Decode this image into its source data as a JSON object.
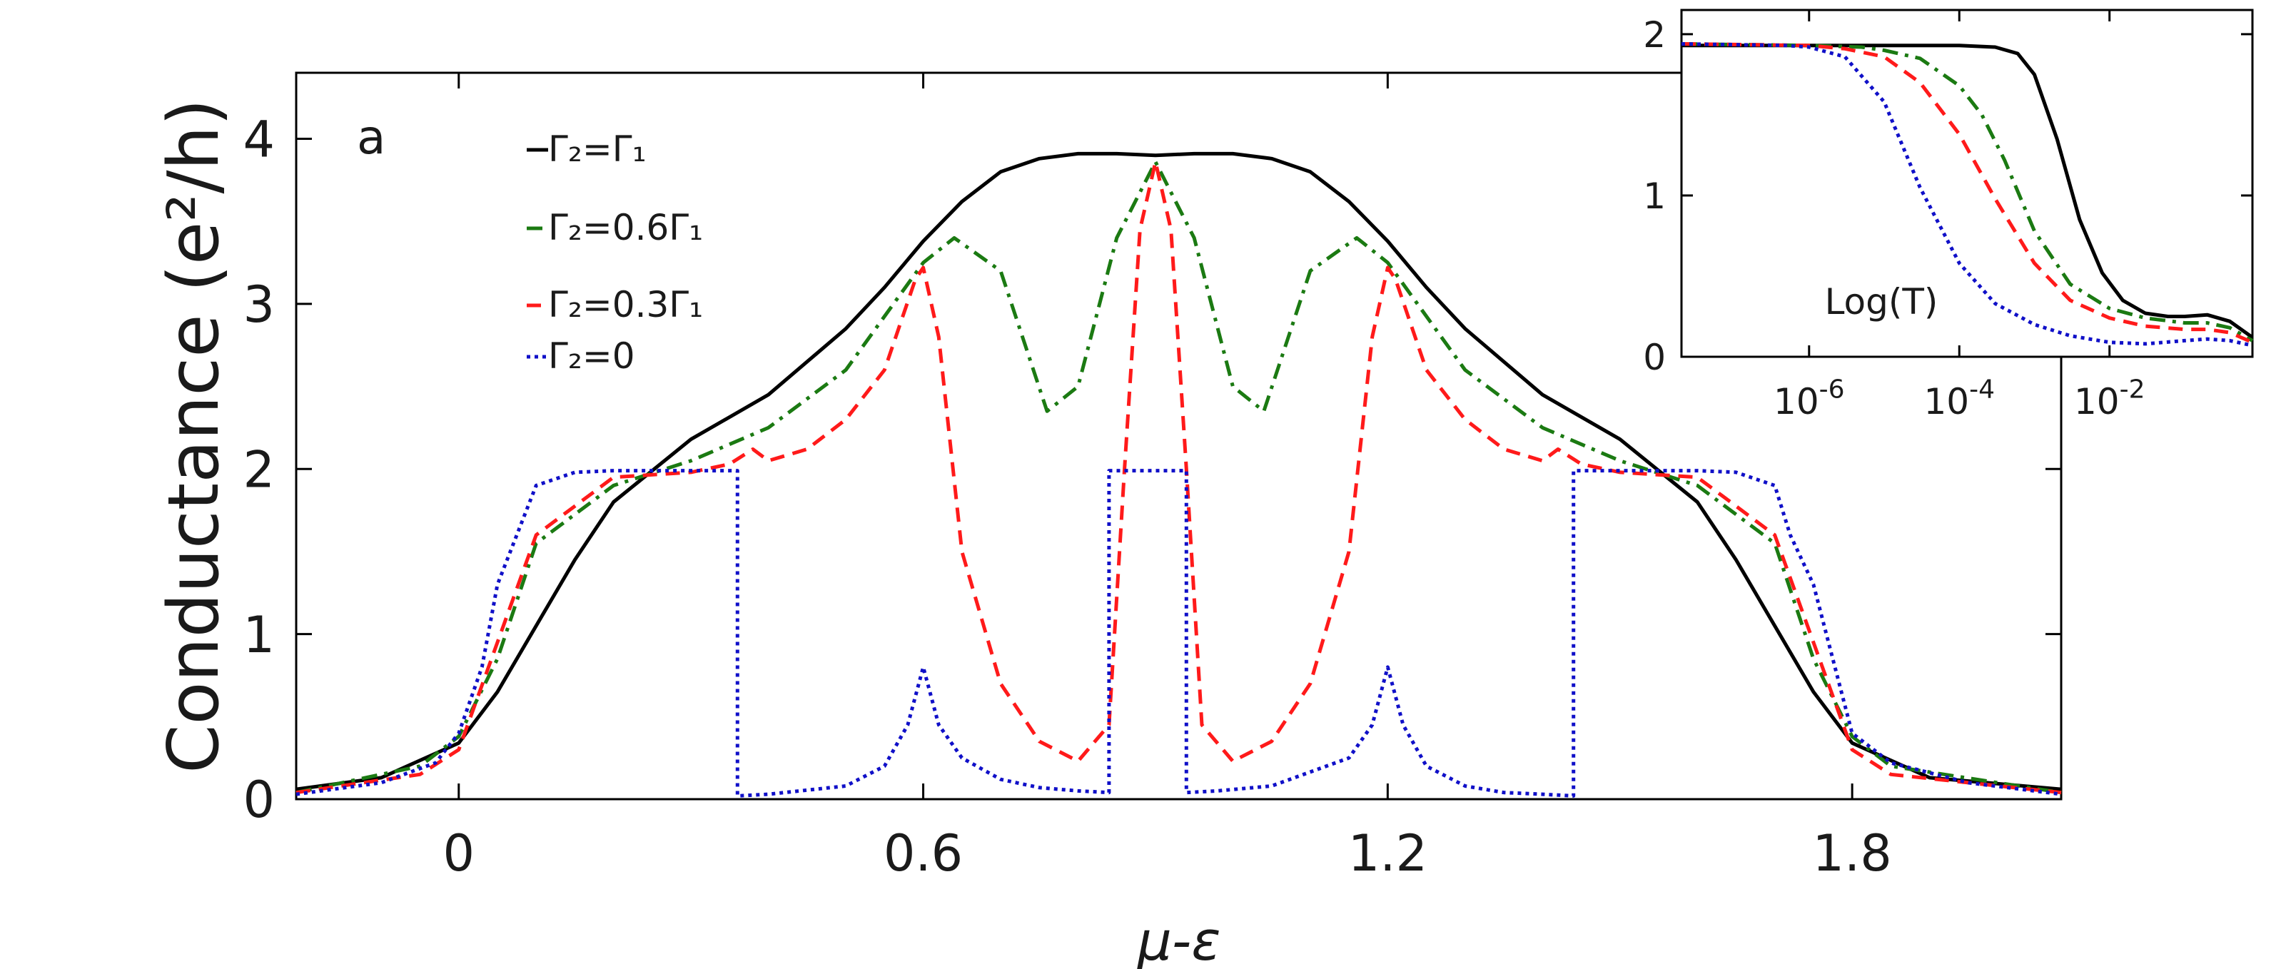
{
  "colors": {
    "G1": "#000000",
    "G06": "#1b7a12",
    "G03": "#ff1a1a",
    "G0": "#1010c8"
  },
  "chart_data": [
    {
      "type": "line",
      "panel_label": "a",
      "xlabel": "μ-ε",
      "ylabel": "Conductance (e²/h)",
      "xlim": [
        -0.21,
        2.07
      ],
      "ylim": [
        0,
        4.4
      ],
      "xticks": [
        0,
        0.6,
        1.2,
        1.8
      ],
      "xtick_labels": [
        "0",
        "0.6",
        "1.2",
        "1.8"
      ],
      "yticks": [
        0,
        1,
        2,
        3,
        4
      ],
      "ytick_labels": [
        "0",
        "1",
        "2",
        "3",
        "4"
      ],
      "grid": false,
      "legend_position": "top-left",
      "series": [
        {
          "key": "G1",
          "name": "Γ₂=Γ₁",
          "style": "solid",
          "x": [
            -0.21,
            -0.1,
            0,
            0.05,
            0.1,
            0.15,
            0.2,
            0.3,
            0.4,
            0.5,
            0.55,
            0.6,
            0.65,
            0.7,
            0.75,
            0.8,
            0.85,
            0.9,
            0.95,
            1.0,
            1.05,
            1.1,
            1.15,
            1.2,
            1.25,
            1.3,
            1.4,
            1.5,
            1.6,
            1.65,
            1.7,
            1.75,
            1.8,
            1.9,
            2.07
          ],
          "y": [
            0.06,
            0.13,
            0.34,
            0.65,
            1.05,
            1.45,
            1.8,
            2.18,
            2.45,
            2.85,
            3.1,
            3.38,
            3.62,
            3.8,
            3.88,
            3.91,
            3.91,
            3.9,
            3.91,
            3.91,
            3.88,
            3.8,
            3.62,
            3.38,
            3.1,
            2.85,
            2.45,
            2.18,
            1.8,
            1.45,
            1.05,
            0.65,
            0.34,
            0.13,
            0.06
          ]
        },
        {
          "key": "G06",
          "name": "Γ₂=0.6Γ₁",
          "style": "dashdot",
          "x": [
            -0.21,
            -0.05,
            0,
            0.05,
            0.1,
            0.2,
            0.3,
            0.4,
            0.5,
            0.6,
            0.64,
            0.7,
            0.76,
            0.8,
            0.85,
            0.9,
            0.95,
            1.0,
            1.04,
            1.1,
            1.16,
            1.2,
            1.3,
            1.4,
            1.5,
            1.6,
            1.7,
            1.75,
            1.8,
            1.85,
            2.07
          ],
          "y": [
            0.04,
            0.2,
            0.38,
            0.85,
            1.55,
            1.9,
            2.05,
            2.25,
            2.6,
            3.25,
            3.4,
            3.2,
            2.35,
            2.5,
            3.4,
            3.86,
            3.4,
            2.5,
            2.35,
            3.2,
            3.4,
            3.25,
            2.6,
            2.25,
            2.05,
            1.9,
            1.55,
            0.85,
            0.38,
            0.2,
            0.04
          ]
        },
        {
          "key": "G03",
          "name": "Γ₂=0.3Γ₁",
          "style": "dashed",
          "x": [
            -0.21,
            -0.05,
            0,
            0.05,
            0.1,
            0.2,
            0.3,
            0.35,
            0.38,
            0.4,
            0.45,
            0.5,
            0.55,
            0.59,
            0.6,
            0.62,
            0.65,
            0.7,
            0.75,
            0.8,
            0.84,
            0.86,
            0.88,
            0.9,
            0.92,
            0.94,
            0.96,
            1.0,
            1.05,
            1.1,
            1.15,
            1.18,
            1.2,
            1.21,
            1.25,
            1.3,
            1.35,
            1.4,
            1.42,
            1.45,
            1.5,
            1.6,
            1.7,
            1.75,
            1.8,
            1.85,
            2.07
          ],
          "y": [
            0.04,
            0.15,
            0.3,
            0.95,
            1.6,
            1.95,
            1.98,
            2.03,
            2.12,
            2.05,
            2.12,
            2.3,
            2.6,
            3.15,
            3.22,
            2.8,
            1.5,
            0.7,
            0.35,
            0.23,
            0.45,
            2.0,
            3.45,
            3.86,
            3.45,
            2.0,
            0.45,
            0.23,
            0.35,
            0.7,
            1.5,
            2.8,
            3.22,
            3.15,
            2.6,
            2.3,
            2.12,
            2.05,
            2.12,
            2.03,
            1.98,
            1.95,
            1.6,
            0.95,
            0.3,
            0.15,
            0.04
          ]
        },
        {
          "key": "G0",
          "name": "Γ₂=0",
          "style": "dotted",
          "x": [
            -0.21,
            -0.1,
            -0.03,
            0,
            0.03,
            0.05,
            0.1,
            0.15,
            0.2,
            0.3,
            0.36,
            0.36,
            0.4,
            0.5,
            0.55,
            0.58,
            0.6,
            0.62,
            0.65,
            0.7,
            0.75,
            0.8,
            0.84,
            0.84,
            0.94,
            0.94,
            0.98,
            1.05,
            1.15,
            1.18,
            1.2,
            1.22,
            1.25,
            1.3,
            1.35,
            1.4,
            1.44,
            1.44,
            1.5,
            1.55,
            1.6,
            1.65,
            1.7,
            1.72,
            1.75,
            1.8,
            1.85,
            1.95,
            2.07
          ],
          "y": [
            0.03,
            0.1,
            0.22,
            0.4,
            0.8,
            1.3,
            1.9,
            1.98,
            1.99,
            1.99,
            1.99,
            0.02,
            0.03,
            0.08,
            0.2,
            0.45,
            0.8,
            0.45,
            0.25,
            0.12,
            0.07,
            0.05,
            0.04,
            1.99,
            1.99,
            0.04,
            0.05,
            0.08,
            0.25,
            0.45,
            0.8,
            0.45,
            0.2,
            0.08,
            0.04,
            0.03,
            0.02,
            1.99,
            1.99,
            1.99,
            1.99,
            1.98,
            1.9,
            1.6,
            1.3,
            0.4,
            0.22,
            0.1,
            0.03
          ]
        }
      ]
    },
    {
      "type": "line",
      "inset": true,
      "xlabel": "Log(T)",
      "x_scale": "log",
      "xlim": [
        2e-08,
        0.8
      ],
      "ylim": [
        0,
        2.15
      ],
      "xticks": [
        1e-06,
        0.0001,
        0.01
      ],
      "xtick_labels": [
        [
          "10",
          "-6"
        ],
        [
          "10",
          "-4"
        ],
        [
          "10",
          "-2"
        ]
      ],
      "yticks": [
        0,
        1,
        2
      ],
      "ytick_labels": [
        "0",
        "1",
        "2"
      ],
      "series": [
        {
          "key": "G1",
          "style": "solid",
          "x": [
            2e-08,
            1e-06,
            1e-05,
            0.0001,
            0.0003,
            0.0006,
            0.001,
            0.002,
            0.004,
            0.008,
            0.015,
            0.03,
            0.06,
            0.1,
            0.2,
            0.4,
            0.8
          ],
          "y": [
            1.93,
            1.93,
            1.93,
            1.93,
            1.92,
            1.88,
            1.75,
            1.35,
            0.85,
            0.52,
            0.35,
            0.27,
            0.25,
            0.25,
            0.26,
            0.22,
            0.12
          ]
        },
        {
          "key": "G06",
          "style": "dashdot",
          "x": [
            2e-08,
            1e-06,
            5e-06,
            1e-05,
            3e-05,
            0.0001,
            0.0002,
            0.0004,
            0.001,
            0.003,
            0.01,
            0.03,
            0.1,
            0.2,
            0.4,
            0.8
          ],
          "y": [
            1.94,
            1.93,
            1.92,
            1.9,
            1.85,
            1.68,
            1.5,
            1.22,
            0.78,
            0.45,
            0.3,
            0.24,
            0.21,
            0.21,
            0.18,
            0.1
          ]
        },
        {
          "key": "G03",
          "style": "dashed",
          "x": [
            2e-08,
            1e-06,
            3e-06,
            1e-05,
            3e-05,
            0.0001,
            0.0003,
            0.001,
            0.003,
            0.01,
            0.03,
            0.1,
            0.2,
            0.4,
            0.8
          ],
          "y": [
            1.94,
            1.93,
            1.91,
            1.86,
            1.7,
            1.38,
            0.98,
            0.58,
            0.35,
            0.24,
            0.19,
            0.17,
            0.17,
            0.15,
            0.09
          ]
        },
        {
          "key": "G0",
          "style": "dotted",
          "x": [
            2e-08,
            5e-07,
            1e-06,
            3e-06,
            1e-05,
            3e-05,
            0.0001,
            0.0003,
            0.001,
            0.003,
            0.01,
            0.03,
            0.1,
            0.2,
            0.4,
            0.8
          ],
          "y": [
            1.94,
            1.93,
            1.92,
            1.86,
            1.58,
            1.05,
            0.58,
            0.33,
            0.2,
            0.13,
            0.09,
            0.08,
            0.1,
            0.11,
            0.1,
            0.07
          ]
        }
      ]
    }
  ]
}
